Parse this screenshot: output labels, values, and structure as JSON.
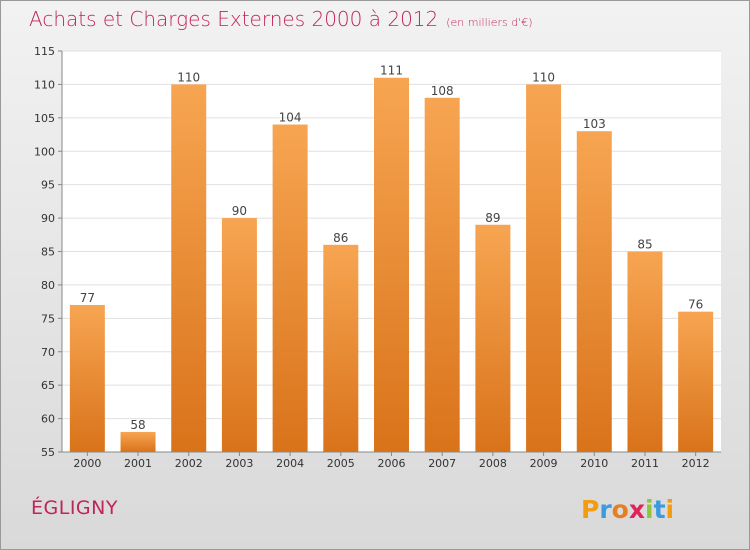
{
  "title": "Achats et Charges Externes 2000 à 2012",
  "unit": "(en milliers d'€)",
  "commune": "ÉGLIGNY",
  "logo_text": "Proxiti",
  "colors": {
    "title": "#c0245a",
    "bar_top": "#f7a552",
    "bar_bottom": "#d9731a",
    "plot_bg": "#ffffff",
    "grid": "#e0e0e0"
  },
  "chart_data": {
    "type": "bar",
    "categories": [
      "2000",
      "2001",
      "2002",
      "2003",
      "2004",
      "2005",
      "2006",
      "2007",
      "2008",
      "2009",
      "2010",
      "2011",
      "2012"
    ],
    "values": [
      77,
      58,
      110,
      90,
      104,
      86,
      111,
      108,
      89,
      110,
      103,
      85,
      76
    ],
    "ylim": [
      55,
      115
    ],
    "yticks": [
      55,
      60,
      65,
      70,
      75,
      80,
      85,
      90,
      95,
      100,
      105,
      110,
      115
    ],
    "grid": true
  }
}
